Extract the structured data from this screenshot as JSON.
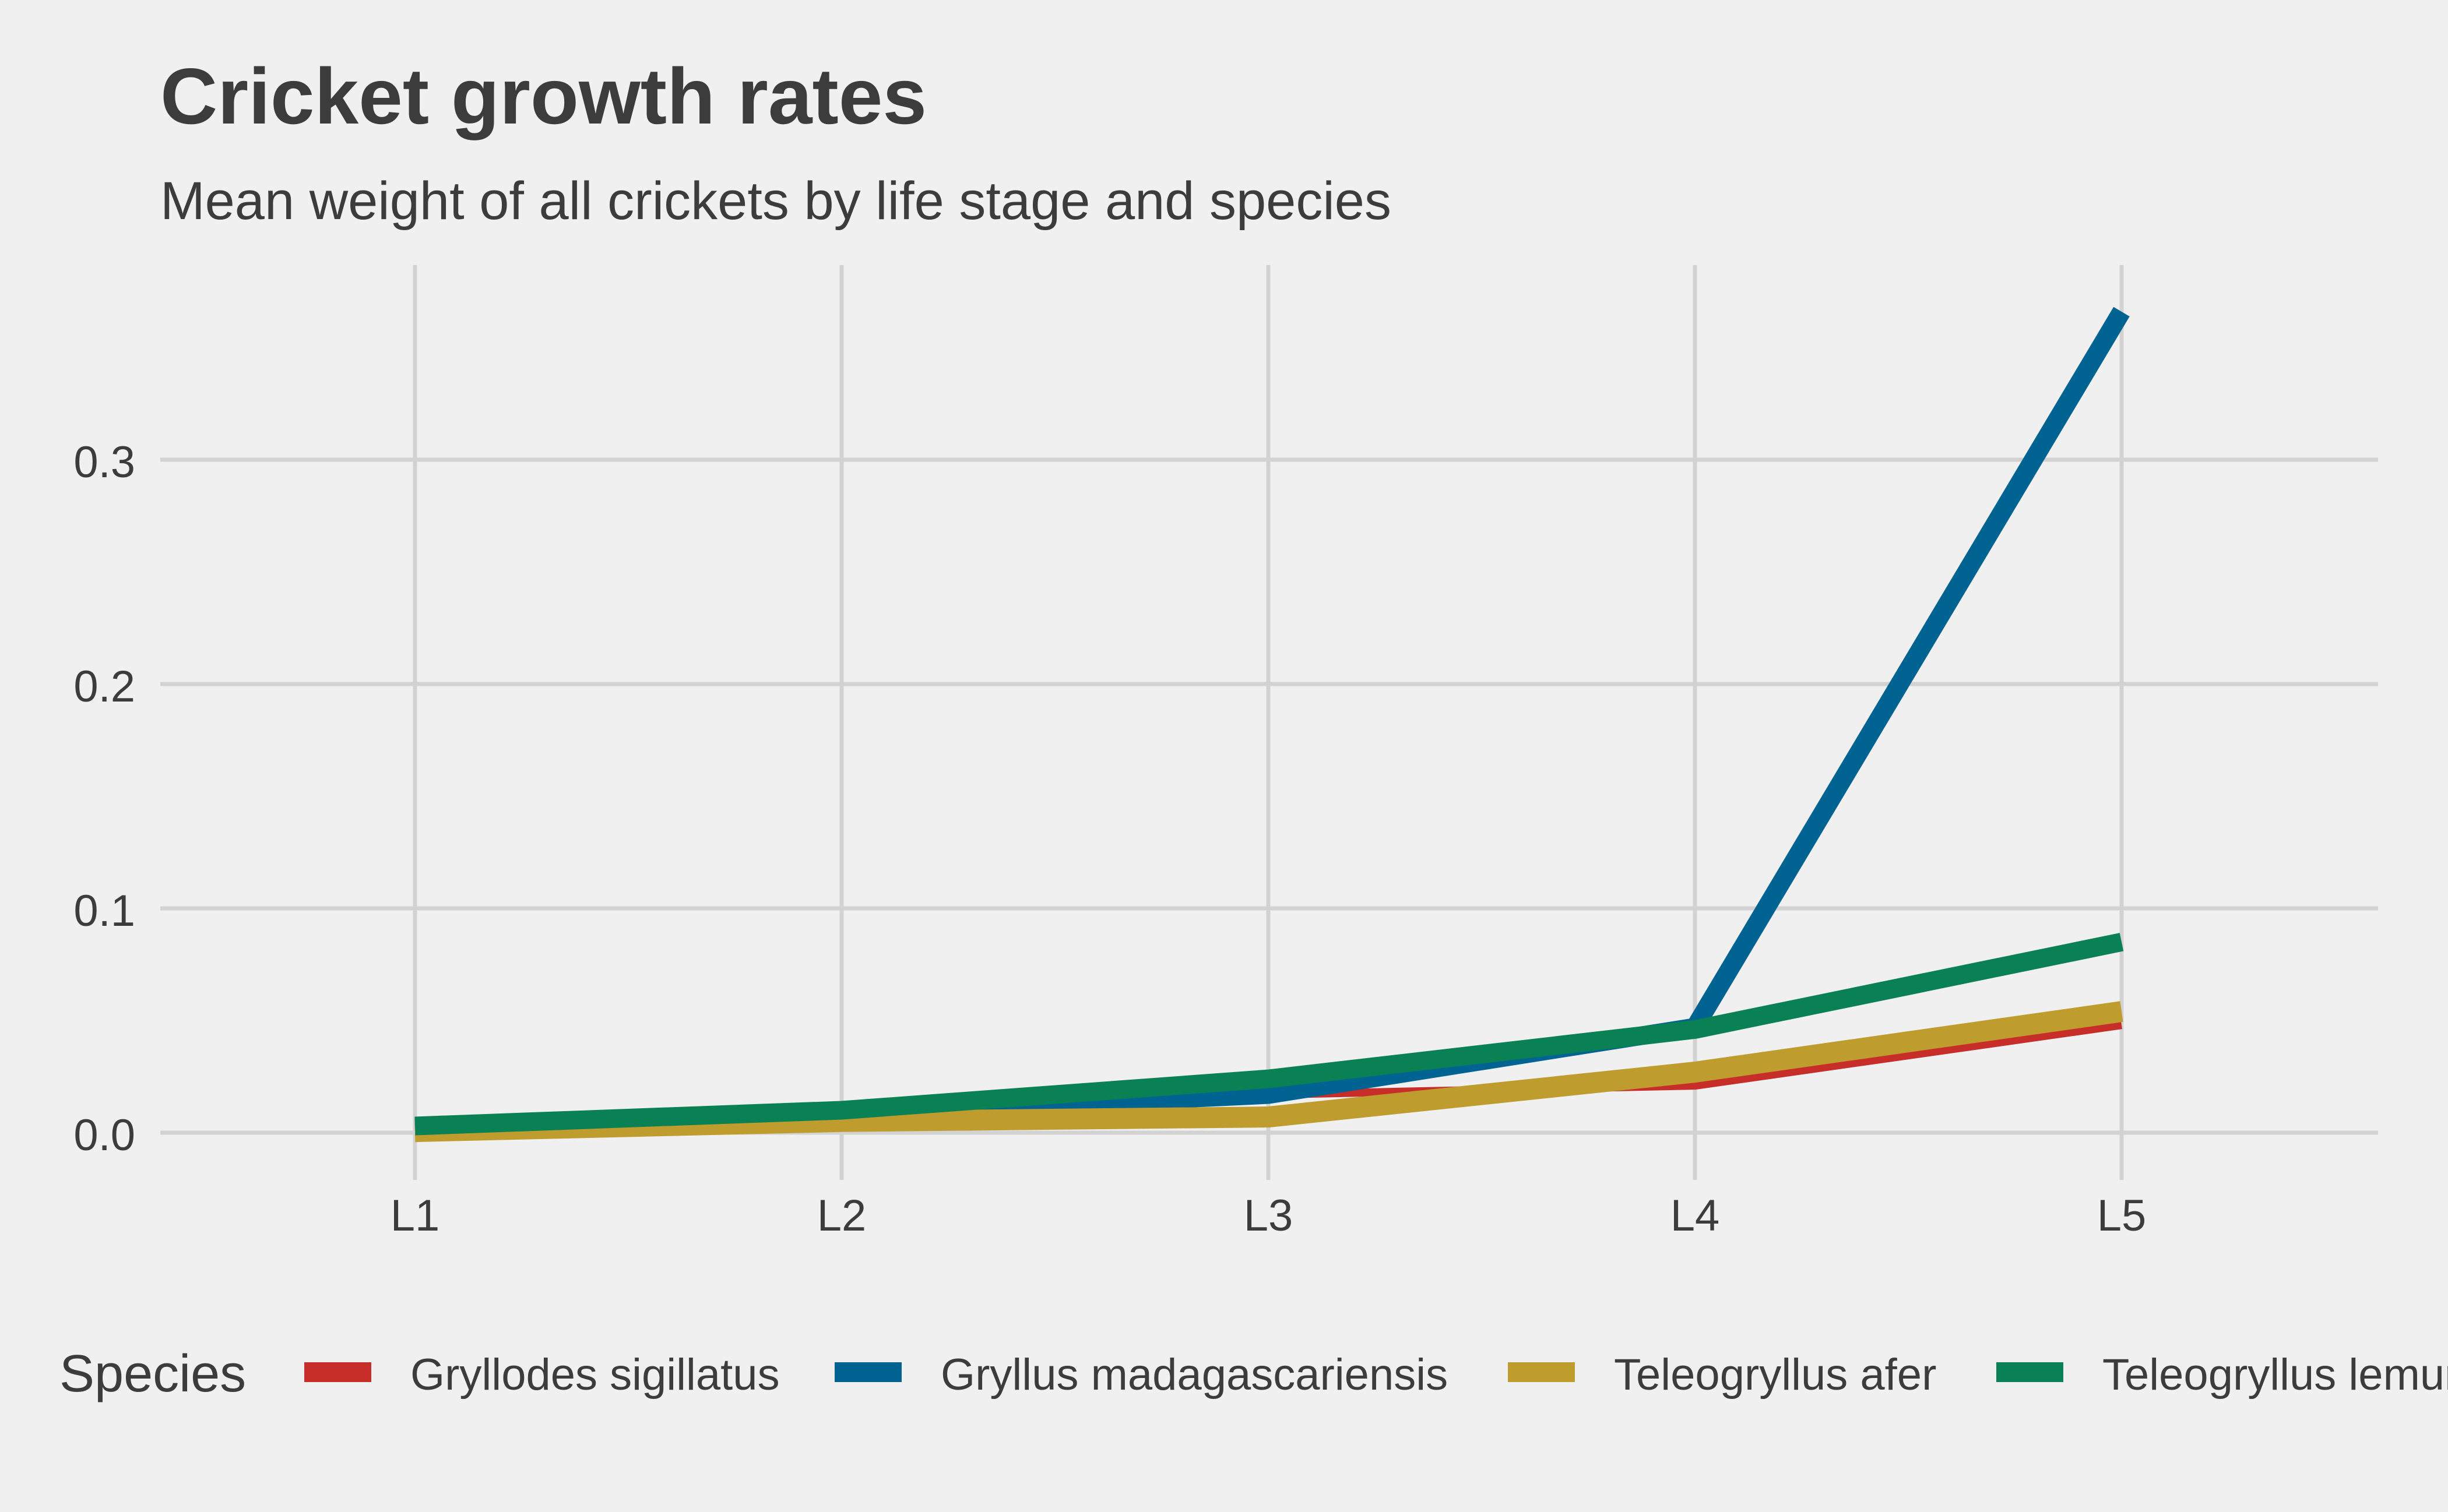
{
  "chart_data": {
    "type": "line",
    "title": "Cricket growth rates",
    "subtitle": "Mean weight of all crickets by life stage and species",
    "xlabel": "",
    "ylabel": "",
    "categories": [
      "L1",
      "L2",
      "L3",
      "L4",
      "L5"
    ],
    "ylim": [
      -0.01,
      0.37
    ],
    "yticks": [
      0.0,
      0.1,
      0.2,
      0.3
    ],
    "ytick_labels": [
      "0.0",
      "0.1",
      "0.2",
      "0.3"
    ],
    "grid": true,
    "legend": {
      "title": "Species",
      "placement": "bottom"
    },
    "series": [
      {
        "name": "Gryllodes sigillatus",
        "color": "#c72e29",
        "values": [
          0.0005,
          0.004,
          0.017,
          0.021,
          0.048
        ]
      },
      {
        "name": "Gryllus madagascariensis",
        "color": "#016392",
        "values": [
          0.002,
          0.008,
          0.017,
          0.047,
          0.366
        ]
      },
      {
        "name": "Teleogryllus afer",
        "color": "#be9c2e",
        "values": [
          0.0005,
          0.005,
          0.007,
          0.027,
          0.054
        ]
      },
      {
        "name": "Teleogryllus lemur",
        "color": "#098154",
        "values": [
          0.003,
          0.01,
          0.024,
          0.046,
          0.085
        ]
      }
    ]
  }
}
